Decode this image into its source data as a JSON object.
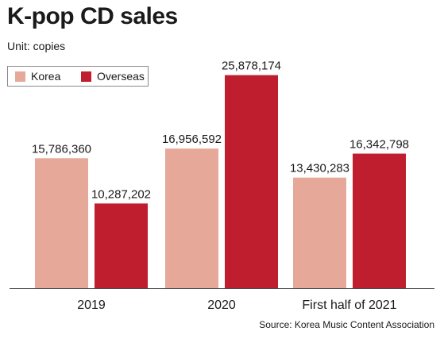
{
  "header": {
    "title": "K-pop CD sales",
    "unit": "Unit: copies"
  },
  "footer": {
    "source": "Source: Korea Music Content Association"
  },
  "colors": {
    "korea": "#e6a898",
    "overseas": "#be1e2d",
    "axis": "#4a4a4a"
  },
  "chart_data": {
    "type": "bar",
    "categories": [
      "2019",
      "2020",
      "First half of 2021"
    ],
    "series": [
      {
        "name": "Korea",
        "values": [
          15786360,
          16956592,
          13430283
        ],
        "labels": [
          "15,786,360",
          "16,956,592",
          "13,430,283"
        ]
      },
      {
        "name": "Overseas",
        "values": [
          10287202,
          25878174,
          16342798
        ],
        "labels": [
          "10,287,202",
          "25,878,174",
          "16,342,798"
        ]
      }
    ],
    "title": "K-pop CD sales",
    "ylabel": "",
    "xlabel": "",
    "ylim": [
      0,
      27000000
    ],
    "grid": false,
    "legend": "top-left"
  }
}
